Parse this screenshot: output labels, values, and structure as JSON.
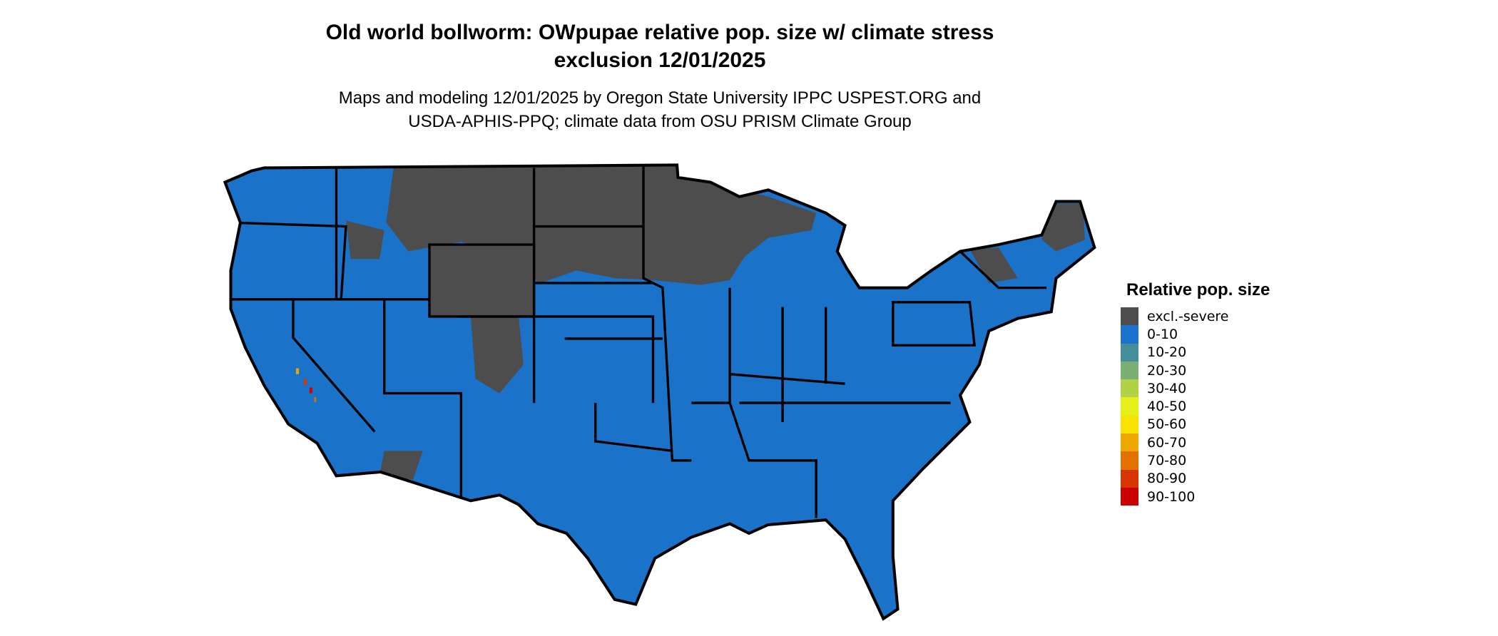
{
  "title": {
    "line1": "Old world bollworm: OWpupae relative pop. size w/ climate stress",
    "line2": "exclusion 12/01/2025"
  },
  "subtitle": {
    "line1": "Maps and modeling 12/01/2025 by Oregon State University IPPC USPEST.ORG and",
    "line2": "USDA-APHIS-PPQ; climate data from OSU PRISM Climate Group"
  },
  "map": {
    "region": "Contiguous United States",
    "fill_colors": {
      "excluded": "#4d4d4d",
      "low": "#1a73c9",
      "border": "#000000"
    }
  },
  "legend": {
    "title": "Relative pop. size",
    "items": [
      {
        "label": "excl.-severe",
        "color": "#4d4d4d"
      },
      {
        "label": "0-10",
        "color": "#1a73cf"
      },
      {
        "label": "10-20",
        "color": "#468d9c"
      },
      {
        "label": "20-30",
        "color": "#7bae73"
      },
      {
        "label": "30-40",
        "color": "#b1d147"
      },
      {
        "label": "40-50",
        "color": "#e4f017"
      },
      {
        "label": "50-60",
        "color": "#f9e100"
      },
      {
        "label": "60-70",
        "color": "#efa800"
      },
      {
        "label": "70-80",
        "color": "#e37100"
      },
      {
        "label": "80-90",
        "color": "#d83600"
      },
      {
        "label": "90-100",
        "color": "#cc0000"
      }
    ]
  }
}
